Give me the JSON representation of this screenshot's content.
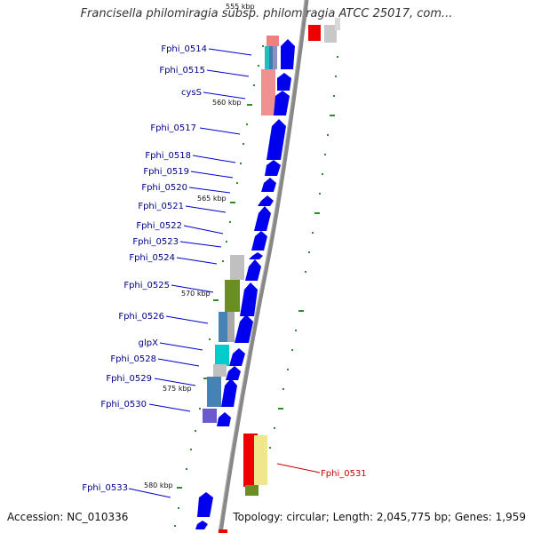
{
  "title": "Francisella philomiragia subsp. philomiragia ATCC 25017, com...",
  "footer": {
    "accession": "Accession: NC_010336",
    "topology": "Topology: circular; Length: 2,045,775 bp; Genes: 1,959"
  },
  "gene_labels": [
    "Fphi_0514",
    "Fphi_0515",
    "cysS",
    "Fphi_0517",
    "Fphi_0518",
    "Fphi_0519",
    "Fphi_0520",
    "Fphi_0521",
    "Fphi_0522",
    "Fphi_0523",
    "Fphi_0524",
    "Fphi_0525",
    "Fphi_0526",
    "glpX",
    "Fphi_0528",
    "Fphi_0529",
    "Fphi_0530",
    "Fphi_0531",
    "Fphi_0533"
  ],
  "scale_labels": [
    "555 kbp",
    "560 kbp",
    "565 kbp",
    "570 kbp",
    "575 kbp",
    "580 kbp"
  ],
  "colors": {
    "label": "#00008b",
    "label_highlight": "#cc0000",
    "backbone": "#888888",
    "cds": "#0000ee",
    "tick": "#2e8b2e"
  }
}
